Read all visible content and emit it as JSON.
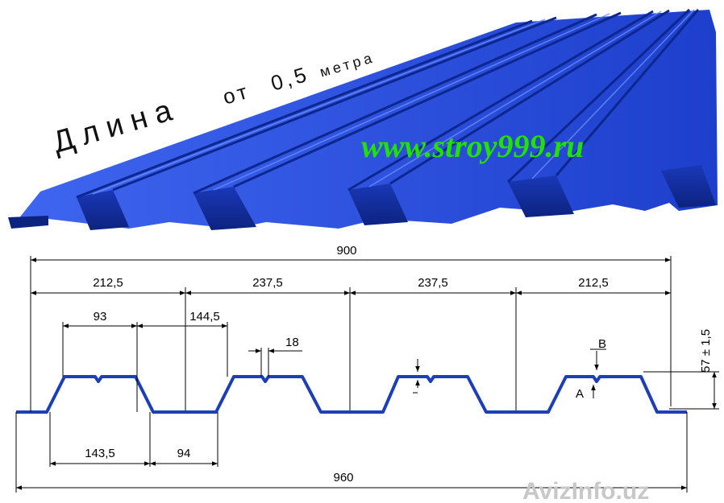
{
  "headline": {
    "word": "Длина",
    "prefix": "от",
    "value": "0,5",
    "unit": "метра"
  },
  "website": "www.stroy999.ru",
  "watermark": {
    "text": "AvizInfo",
    "suffix": ".uz"
  },
  "colors": {
    "sheet_top": "#2a4fd8",
    "sheet_dark": "#0f2a9c",
    "profile_line": "#1c3fb8",
    "url_green": "#22e000"
  },
  "dimensions": {
    "overall_width": "900",
    "full_width": "960",
    "spans": [
      "212,5",
      "237,5",
      "237,5",
      "212,5"
    ],
    "top_flange": "93",
    "top_gap": "144,5",
    "rib": "18",
    "bottom_wide": "143,5",
    "bottom_narrow": "94",
    "height": "57 ± 1,5",
    "label_a": "A",
    "label_b": "B"
  }
}
